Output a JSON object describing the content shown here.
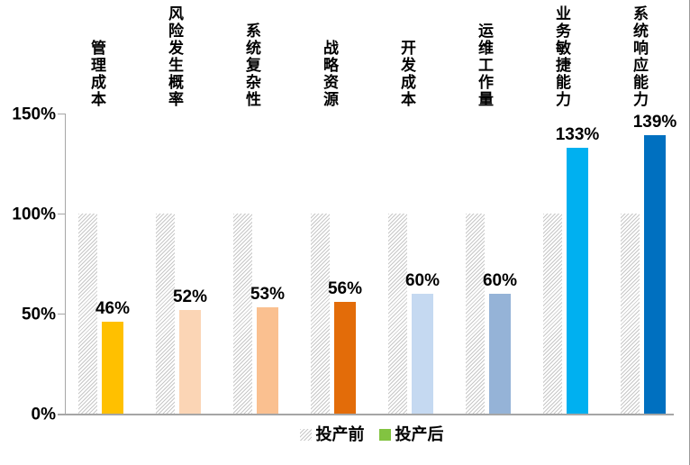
{
  "chart_data": {
    "type": "bar",
    "title": "",
    "categories": [
      "管理成本",
      "风险发生概率",
      "系统复杂性",
      "战略资源",
      "开发成本",
      "运维工作量",
      "业务敏捷能力",
      "系统响应能力"
    ],
    "series": [
      {
        "name": "投产前",
        "values": [
          100,
          100,
          100,
          100,
          100,
          100,
          100,
          100
        ],
        "fill": "hatched-diagonal-gray",
        "legend_color": "hatch"
      },
      {
        "name": "投产后",
        "values": [
          46,
          52,
          53,
          56,
          60,
          60,
          133,
          139
        ],
        "bar_colors": [
          "#FFC000",
          "#FBD5B5",
          "#FAC090",
          "#E36C09",
          "#C5D9F1",
          "#95B3D7",
          "#00B0F0",
          "#0070C0"
        ],
        "legend_color": "#82C341"
      }
    ],
    "data_labels": [
      "46%",
      "52%",
      "53%",
      "56%",
      "60%",
      "60%",
      "133%",
      "139%"
    ],
    "y_ticks": [
      {
        "label": "0%",
        "value": 0
      },
      {
        "label": "50%",
        "value": 50
      },
      {
        "label": "100%",
        "value": 100
      },
      {
        "label": "150%",
        "value": 150
      }
    ],
    "ylim": [
      0,
      150
    ],
    "grid": false,
    "legend_position": "bottom-center"
  },
  "colors": {
    "hatch_line": "#C7C7C7",
    "axis_line": "#A6A6A6",
    "label_text": "#000000",
    "background": "#FFFFFF"
  }
}
